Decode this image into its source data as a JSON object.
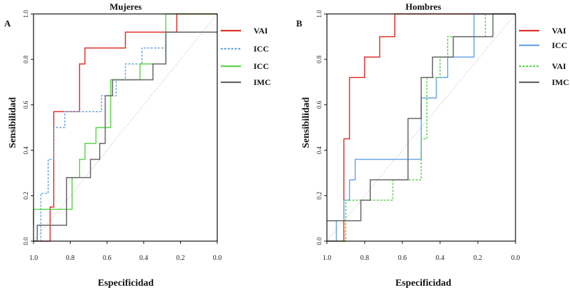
{
  "chart_data": [
    {
      "type": "line",
      "panel_label": "A",
      "title": "Mujeres",
      "xlabel": "Especificidad",
      "ylabel": "Sensibilidad",
      "xlim": [
        1.0,
        0.0
      ],
      "ylim": [
        0.0,
        1.0
      ],
      "x_ticks": [
        1.0,
        0.8,
        0.6,
        0.4,
        0.2,
        0.0
      ],
      "x_tick_labels": [
        "1.0",
        "0.8",
        "0.6",
        "0.4",
        "0.2",
        "0.0"
      ],
      "y_ticks": [
        0.0,
        0.2,
        0.4,
        0.6,
        0.8,
        1.0
      ],
      "y_tick_labels": [
        "0.0",
        "0.2",
        "0.4",
        "0.6",
        "0.8",
        "1.0"
      ],
      "grid": false,
      "legend_position": "right",
      "colors": {
        "red": "#e0302a",
        "blue": "#6aa6e6",
        "green": "#5cd64a",
        "gray": "#666666",
        "diag": "#c8c8c8"
      },
      "series": [
        {
          "name": "VAI",
          "color": "#e0302a",
          "dash": "none",
          "points": [
            [
              1.0,
              0.0
            ],
            [
              0.91,
              0.0
            ],
            [
              0.91,
              0.15
            ],
            [
              0.89,
              0.15
            ],
            [
              0.89,
              0.57
            ],
            [
              0.75,
              0.57
            ],
            [
              0.75,
              0.78
            ],
            [
              0.72,
              0.78
            ],
            [
              0.72,
              0.85
            ],
            [
              0.5,
              0.85
            ],
            [
              0.5,
              0.92
            ],
            [
              0.22,
              0.92
            ],
            [
              0.22,
              1.0
            ],
            [
              0.0,
              1.0
            ]
          ]
        },
        {
          "name": "ICC",
          "color": "#6aa6e6",
          "dash": "3,2",
          "points": [
            [
              1.0,
              0.0
            ],
            [
              0.96,
              0.0
            ],
            [
              0.96,
              0.21
            ],
            [
              0.92,
              0.21
            ],
            [
              0.92,
              0.36
            ],
            [
              0.89,
              0.36
            ],
            [
              0.89,
              0.5
            ],
            [
              0.83,
              0.5
            ],
            [
              0.83,
              0.57
            ],
            [
              0.63,
              0.57
            ],
            [
              0.63,
              0.64
            ],
            [
              0.55,
              0.64
            ],
            [
              0.55,
              0.71
            ],
            [
              0.5,
              0.71
            ],
            [
              0.5,
              0.78
            ],
            [
              0.41,
              0.78
            ],
            [
              0.41,
              0.85
            ],
            [
              0.28,
              0.85
            ],
            [
              0.28,
              0.92
            ],
            [
              0.0,
              0.92
            ]
          ]
        },
        {
          "name": "ICC",
          "color": "#5cd64a",
          "dash": "none",
          "points": [
            [
              1.0,
              0.07
            ],
            [
              1.0,
              0.14
            ],
            [
              0.79,
              0.14
            ],
            [
              0.79,
              0.28
            ],
            [
              0.75,
              0.28
            ],
            [
              0.75,
              0.36
            ],
            [
              0.72,
              0.36
            ],
            [
              0.72,
              0.43
            ],
            [
              0.66,
              0.43
            ],
            [
              0.66,
              0.5
            ],
            [
              0.58,
              0.5
            ],
            [
              0.58,
              0.71
            ],
            [
              0.42,
              0.71
            ],
            [
              0.42,
              0.78
            ],
            [
              0.28,
              0.78
            ],
            [
              0.28,
              1.0
            ],
            [
              0.0,
              1.0
            ]
          ]
        },
        {
          "name": "IMC",
          "color": "#666666",
          "dash": "none",
          "points": [
            [
              1.0,
              0.0
            ],
            [
              0.98,
              0.0
            ],
            [
              0.98,
              0.07
            ],
            [
              0.82,
              0.07
            ],
            [
              0.82,
              0.28
            ],
            [
              0.69,
              0.28
            ],
            [
              0.69,
              0.36
            ],
            [
              0.64,
              0.36
            ],
            [
              0.64,
              0.43
            ],
            [
              0.61,
              0.43
            ],
            [
              0.61,
              0.64
            ],
            [
              0.57,
              0.64
            ],
            [
              0.57,
              0.71
            ],
            [
              0.35,
              0.71
            ],
            [
              0.35,
              0.78
            ],
            [
              0.28,
              0.78
            ],
            [
              0.28,
              0.92
            ],
            [
              0.0,
              0.92
            ]
          ]
        }
      ]
    },
    {
      "type": "line",
      "panel_label": "B",
      "title": "Hombres",
      "xlabel": "Especificidad",
      "ylabel": "Sensibilidad",
      "xlim": [
        1.0,
        0.0
      ],
      "ylim": [
        0.0,
        1.0
      ],
      "x_ticks": [
        1.0,
        0.8,
        0.6,
        0.4,
        0.2,
        0.0
      ],
      "x_tick_labels": [
        "1.0",
        "0.8",
        "0.6",
        "0.4",
        "0.2",
        "0.0"
      ],
      "y_ticks": [
        0.0,
        0.2,
        0.4,
        0.6,
        0.8,
        1.0
      ],
      "y_tick_labels": [
        "0.0",
        "0.2",
        "0.4",
        "0.6",
        "0.8",
        "1.0"
      ],
      "grid": false,
      "legend_position": "right",
      "series": [
        {
          "name": "VAI",
          "color": "#e0302a",
          "dash": "none",
          "points": [
            [
              1.0,
              0.0
            ],
            [
              0.91,
              0.0
            ],
            [
              0.91,
              0.45
            ],
            [
              0.88,
              0.45
            ],
            [
              0.88,
              0.72
            ],
            [
              0.8,
              0.72
            ],
            [
              0.8,
              0.81
            ],
            [
              0.72,
              0.81
            ],
            [
              0.72,
              0.9
            ],
            [
              0.64,
              0.9
            ],
            [
              0.64,
              1.0
            ],
            [
              0.0,
              1.0
            ]
          ]
        },
        {
          "name": "ICC",
          "color": "#6aa6e6",
          "dash": "none",
          "points": [
            [
              1.0,
              0.0
            ],
            [
              0.95,
              0.0
            ],
            [
              0.95,
              0.09
            ],
            [
              0.91,
              0.09
            ],
            [
              0.91,
              0.18
            ],
            [
              0.88,
              0.18
            ],
            [
              0.88,
              0.27
            ],
            [
              0.85,
              0.27
            ],
            [
              0.85,
              0.36
            ],
            [
              0.5,
              0.36
            ],
            [
              0.5,
              0.63
            ],
            [
              0.42,
              0.63
            ],
            [
              0.42,
              0.72
            ],
            [
              0.36,
              0.72
            ],
            [
              0.36,
              0.81
            ],
            [
              0.22,
              0.81
            ],
            [
              0.22,
              1.0
            ],
            [
              0.0,
              1.0
            ]
          ]
        },
        {
          "name": "VAI",
          "color": "#5cd64a",
          "dash": "3,2",
          "points": [
            [
              1.0,
              0.0
            ],
            [
              0.9,
              0.0
            ],
            [
              0.9,
              0.18
            ],
            [
              0.65,
              0.18
            ],
            [
              0.65,
              0.27
            ],
            [
              0.5,
              0.27
            ],
            [
              0.5,
              0.45
            ],
            [
              0.47,
              0.45
            ],
            [
              0.47,
              0.72
            ],
            [
              0.4,
              0.72
            ],
            [
              0.4,
              0.81
            ],
            [
              0.36,
              0.81
            ],
            [
              0.36,
              0.9
            ],
            [
              0.16,
              0.9
            ],
            [
              0.16,
              1.0
            ],
            [
              0.0,
              1.0
            ]
          ]
        },
        {
          "name": "IMC",
          "color": "#666666",
          "dash": "none",
          "points": [
            [
              1.0,
              0.09
            ],
            [
              0.82,
              0.09
            ],
            [
              0.82,
              0.18
            ],
            [
              0.77,
              0.18
            ],
            [
              0.77,
              0.27
            ],
            [
              0.57,
              0.27
            ],
            [
              0.57,
              0.54
            ],
            [
              0.5,
              0.54
            ],
            [
              0.5,
              0.72
            ],
            [
              0.44,
              0.72
            ],
            [
              0.44,
              0.81
            ],
            [
              0.33,
              0.81
            ],
            [
              0.33,
              0.9
            ],
            [
              0.12,
              0.9
            ],
            [
              0.12,
              1.0
            ],
            [
              0.0,
              1.0
            ]
          ]
        }
      ]
    }
  ]
}
